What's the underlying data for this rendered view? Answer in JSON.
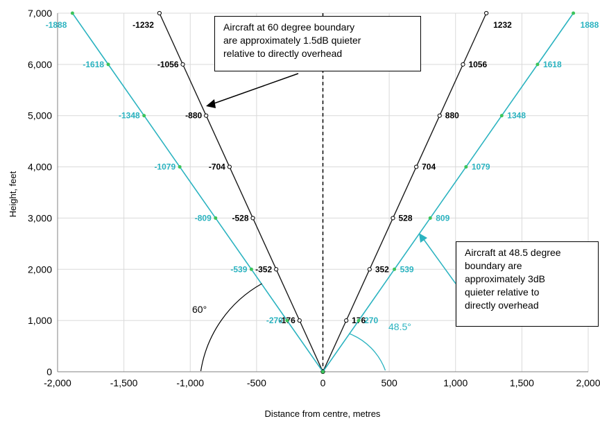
{
  "chart_data": {
    "type": "line",
    "title": "",
    "xlabel": "Distance from centre, metres",
    "ylabel": "Height, feet",
    "xlim": [
      -2000,
      2000
    ],
    "ylim": [
      0,
      7000
    ],
    "x_ticks": [
      -2000,
      -1500,
      -1000,
      -500,
      0,
      500,
      1000,
      1500,
      2000
    ],
    "y_ticks": [
      0,
      1000,
      2000,
      3000,
      4000,
      5000,
      6000,
      7000
    ],
    "x_tick_labels": [
      "-2,000",
      "-1,500",
      "-1,000",
      "-500",
      "0",
      "500",
      "1,000",
      "1,500",
      "2,000"
    ],
    "y_tick_labels": [
      "0",
      "1,000",
      "2,000",
      "3,000",
      "4,000",
      "5,000",
      "6,000",
      "7,000"
    ],
    "grid": true,
    "series": [
      {
        "color": "#1a1a1a",
        "points": [
          [
            -1232,
            7000
          ],
          [
            -1056,
            6000
          ],
          [
            -880,
            5000
          ],
          [
            -704,
            4000
          ],
          [
            -528,
            3000
          ],
          [
            -352,
            2000
          ],
          [
            -176,
            1000
          ],
          [
            0,
            0
          ],
          [
            176,
            1000
          ],
          [
            352,
            2000
          ],
          [
            528,
            3000
          ],
          [
            704,
            4000
          ],
          [
            880,
            5000
          ],
          [
            1056,
            6000
          ],
          [
            1232,
            7000
          ]
        ],
        "labels": [
          "-1232",
          "-1056",
          "-880",
          "-704",
          "-528",
          "-352",
          "-176",
          "",
          "176",
          "352",
          "528",
          "704",
          "880",
          "1056",
          "1232"
        ]
      },
      {
        "color": "#2bb3c0",
        "points": [
          [
            -1888,
            7000
          ],
          [
            -1618,
            6000
          ],
          [
            -1348,
            5000
          ],
          [
            -1079,
            4000
          ],
          [
            -809,
            3000
          ],
          [
            -539,
            2000
          ],
          [
            -270,
            1000
          ],
          [
            0,
            0
          ],
          [
            270,
            1000
          ],
          [
            539,
            2000
          ],
          [
            809,
            3000
          ],
          [
            1079,
            4000
          ],
          [
            1348,
            5000
          ],
          [
            1618,
            6000
          ],
          [
            1888,
            7000
          ]
        ],
        "labels": [
          "-1888",
          "-1618",
          "-1348",
          "-1079",
          "-809",
          "-539",
          "-270",
          "",
          "270",
          "539",
          "809",
          "1079",
          "1348",
          "1618",
          "1888"
        ]
      }
    ],
    "annotations": {
      "angle_black": "60°",
      "angle_teal": "48.5°",
      "note_black": [
        "Aircraft at 60 degree boundary",
        "are approximately 1.5dB quieter",
        "relative to directly overhead"
      ],
      "note_teal": [
        "Aircraft at 48.5 degree",
        "boundary are",
        "approximately 3dB",
        "quieter relative to",
        "directly overhead"
      ]
    }
  }
}
